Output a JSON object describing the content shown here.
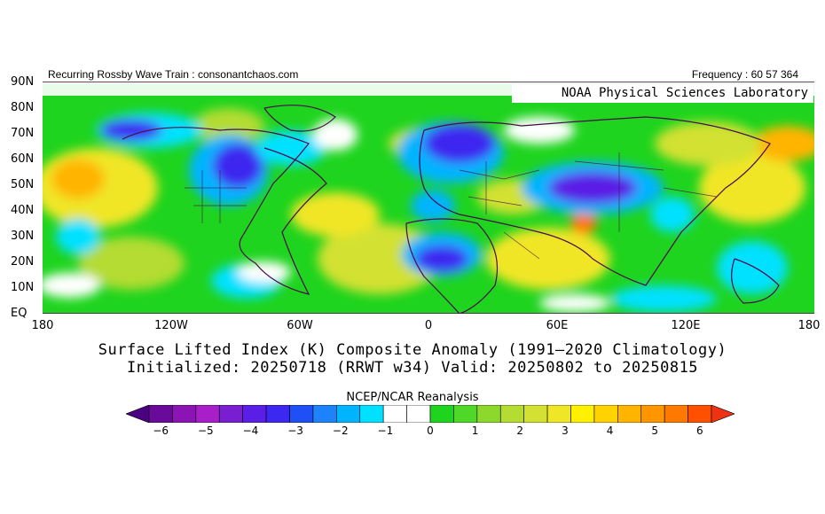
{
  "header": {
    "left": "Recurring Rossby Wave Train : consonantchaos.com",
    "right": "Frequency : 60 57 364"
  },
  "map": {
    "overlay_label": "NOAA Physical Sciences Laboratory",
    "lat_labels": [
      "90N",
      "80N",
      "70N",
      "60N",
      "50N",
      "40N",
      "30N",
      "20N",
      "10N",
      "EQ"
    ],
    "lon_labels": [
      "180",
      "120W",
      "60W",
      "0",
      "60E",
      "120E",
      "180"
    ],
    "background_color": "#1ed41e"
  },
  "title": {
    "line1": "Surface Lifted Index (K) Composite Anomaly (1991—2020 Climatology)",
    "line2": "Initialized: 20250718 (RRWT w34) Valid: 20250802 to 20250815"
  },
  "colorbar": {
    "label": "NCEP/NCAR Reanalysis",
    "ticks": [
      "−6",
      "−5",
      "−4",
      "−3",
      "−2",
      "−1",
      "0",
      "1",
      "2",
      "3",
      "4",
      "5",
      "6"
    ],
    "colors": [
      "#4b0082",
      "#6a0a9a",
      "#8c14b4",
      "#a81ec8",
      "#7a1ed2",
      "#5a1ee6",
      "#3c28f0",
      "#1e50f5",
      "#1e82fa",
      "#00b4ff",
      "#00e1ff",
      "#ffffff",
      "#ffffff",
      "#1ed41e",
      "#50d828",
      "#8cd82d",
      "#b4dc32",
      "#d2e132",
      "#f0e628",
      "#fff000",
      "#ffd200",
      "#ffb400",
      "#ff9600",
      "#ff7800",
      "#ff5000",
      "#f03214"
    ]
  }
}
